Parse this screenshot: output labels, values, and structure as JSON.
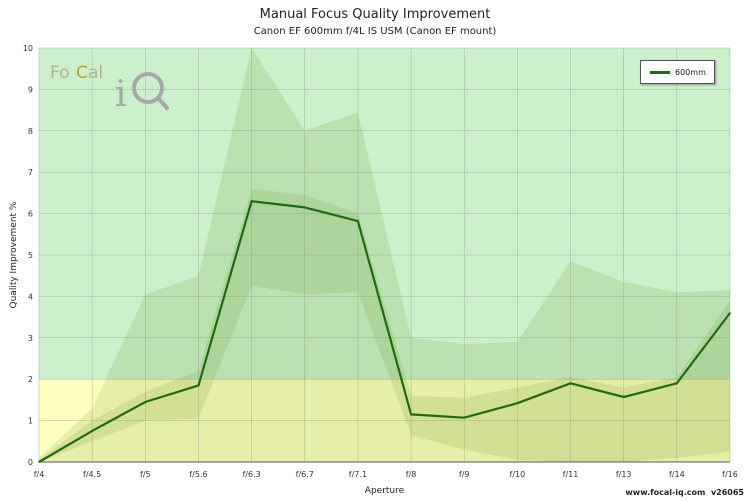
{
  "chart_data": {
    "type": "line",
    "title": "Manual Focus Quality Improvement",
    "subtitle": "Canon EF 600mm f/4L IS USM (Canon EF mount)",
    "xlabel": "Aperture",
    "ylabel": "Quality Improvement %",
    "categories": [
      "f/4",
      "f/4.5",
      "f/5",
      "f/5.6",
      "f/6.3",
      "f/6.7",
      "f/7.1",
      "f/8",
      "f/9",
      "f/10",
      "f/11",
      "f/13",
      "f/14",
      "f/16"
    ],
    "ylim": [
      0,
      10
    ],
    "yticks": [
      "0",
      "1",
      "2",
      "3",
      "4",
      "5",
      "6",
      "7",
      "8",
      "9",
      "10"
    ],
    "grid": true,
    "legend_position": "top-right",
    "background_zones": [
      {
        "from": 0,
        "to": 2,
        "color": "#ffffc0"
      },
      {
        "from": 2,
        "to": 10,
        "color": "#ccf0cc"
      }
    ],
    "series": [
      {
        "name": "600mm",
        "color": "#1e6b12",
        "values": [
          0,
          0.75,
          1.45,
          1.85,
          6.3,
          6.15,
          5.82,
          1.15,
          1.07,
          1.42,
          1.9,
          1.57,
          1.9,
          3.6
        ],
        "band_outer": {
          "upper": [
            0.1,
            1.3,
            4.05,
            4.5,
            10.0,
            8.0,
            8.45,
            3.0,
            2.85,
            2.9,
            4.85,
            4.35,
            4.1,
            4.15
          ],
          "lower": [
            0,
            0,
            0,
            0,
            0,
            0,
            0,
            0,
            0,
            0,
            0,
            0,
            0,
            0
          ]
        },
        "band_inner": {
          "upper": [
            0.05,
            1.0,
            1.7,
            2.2,
            6.6,
            6.45,
            6.0,
            1.6,
            1.55,
            1.8,
            2.05,
            1.8,
            2.05,
            3.9
          ],
          "lower": [
            0,
            0.5,
            1.0,
            1.05,
            4.25,
            4.05,
            4.1,
            0.65,
            0.3,
            0.05,
            0,
            0,
            0.1,
            0.25
          ]
        }
      }
    ]
  },
  "footer": {
    "site": "www.focal-iq.com",
    "version": "v26065"
  },
  "logo": {
    "text_fo": "Fo",
    "text_c": "C",
    "text_al": "al",
    "text_i": "i"
  }
}
